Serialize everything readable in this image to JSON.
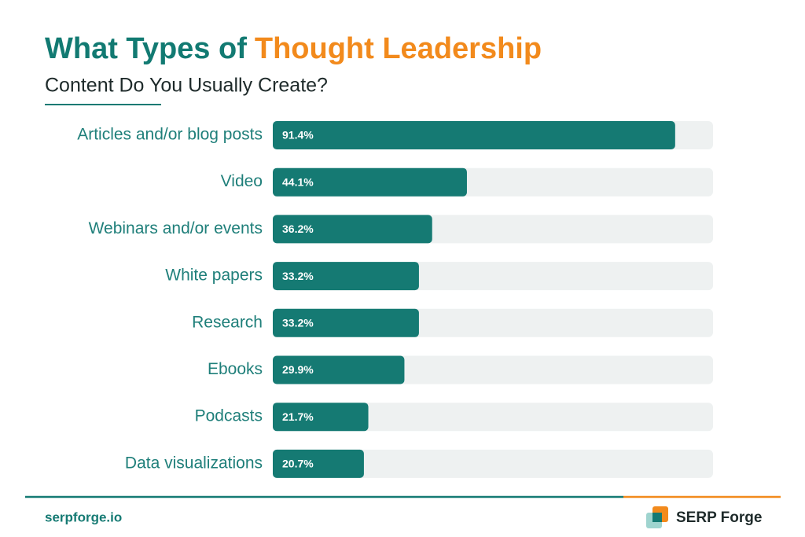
{
  "chart_data": {
    "type": "bar",
    "title_parts": [
      "What Types of",
      "Thought Leadership"
    ],
    "title_colors": [
      "#127a72",
      "#f28a1c"
    ],
    "subtitle": "Content Do You Usually Create?",
    "categories": [
      "Articles and/or blog posts",
      "Video",
      "Webinars and/or events",
      "White papers",
      "Research",
      "Ebooks",
      "Podcasts",
      "Data visualizations"
    ],
    "values": [
      91.4,
      44.1,
      36.2,
      33.2,
      33.2,
      29.9,
      21.7,
      20.7
    ],
    "value_labels": [
      "91.4%",
      "44.1%",
      "36.2%",
      "33.2%",
      "33.2%",
      "29.9%",
      "21.7%",
      "20.7%"
    ],
    "color": "#157a73",
    "xlim": [
      0,
      100
    ]
  },
  "footer": {
    "site": "serpforge.io",
    "brand": "SERP Forge"
  }
}
